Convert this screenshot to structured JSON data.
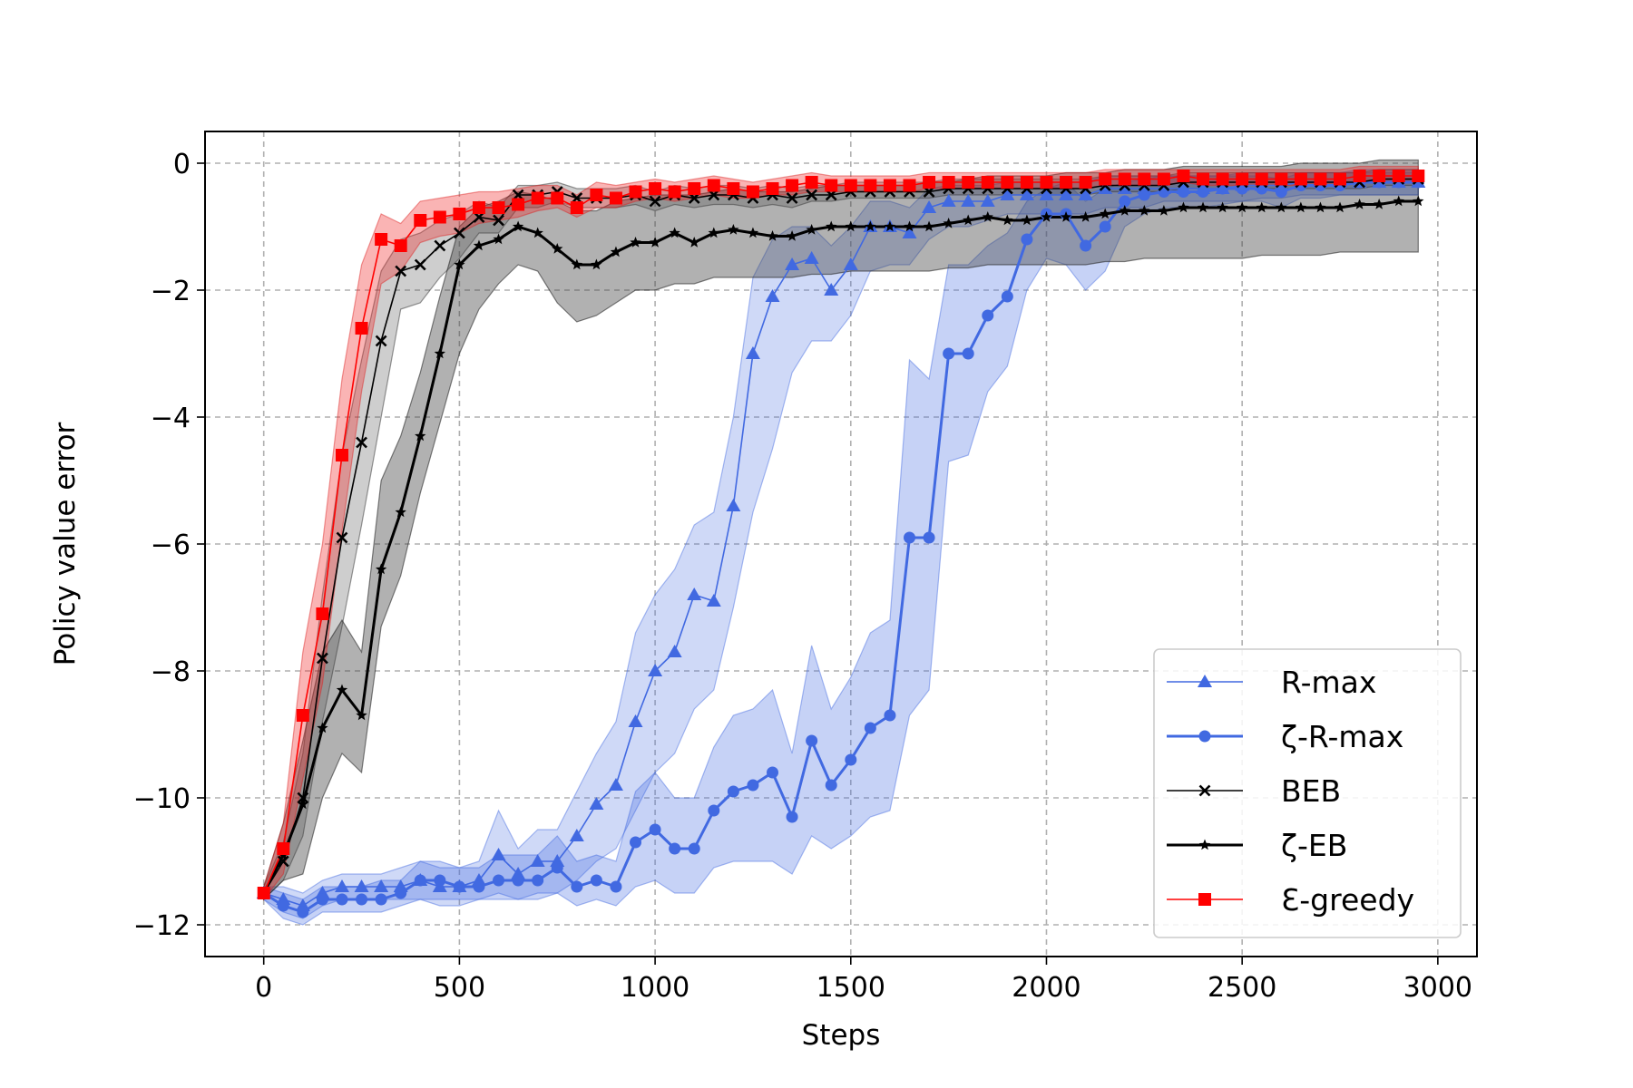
{
  "chart_data": {
    "type": "line",
    "title": "",
    "xlabel": "Steps",
    "ylabel": "Policy value error",
    "xlim": [
      -150,
      3100
    ],
    "ylim": [
      -12.5,
      0.5
    ],
    "xticks": [
      0,
      500,
      1000,
      1500,
      2000,
      2500,
      3000
    ],
    "xtick_labels": [
      "0",
      "500",
      "1000",
      "1500",
      "2000",
      "2500",
      "3000"
    ],
    "yticks": [
      0,
      -2,
      -4,
      -6,
      -8,
      -10,
      -12
    ],
    "ytick_labels": [
      "0",
      "−2",
      "−4",
      "−6",
      "−8",
      "−10",
      "−12"
    ],
    "grid": true,
    "legend_position": "bottom-right",
    "x": [
      0,
      50,
      100,
      150,
      200,
      250,
      300,
      350,
      400,
      450,
      500,
      550,
      600,
      650,
      700,
      750,
      800,
      850,
      900,
      950,
      1000,
      1050,
      1100,
      1150,
      1200,
      1250,
      1300,
      1350,
      1400,
      1450,
      1500,
      1550,
      1600,
      1650,
      1700,
      1750,
      1800,
      1850,
      1900,
      1950,
      2000,
      2050,
      2100,
      2150,
      2200,
      2250,
      2300,
      2350,
      2400,
      2450,
      2500,
      2550,
      2600,
      2650,
      2700,
      2750,
      2800,
      2850,
      2900,
      2950
    ],
    "series": [
      {
        "name": "R-max",
        "color": "#4169e1",
        "marker": "triangle",
        "linewidth": 1.6,
        "values": [
          -11.5,
          -11.6,
          -11.7,
          -11.5,
          -11.4,
          -11.4,
          -11.4,
          -11.4,
          -11.3,
          -11.4,
          -11.4,
          -11.3,
          -10.9,
          -11.2,
          -11.0,
          -11.0,
          -10.6,
          -10.1,
          -9.8,
          -8.8,
          -8.0,
          -7.7,
          -6.8,
          -6.9,
          -5.4,
          -3.0,
          -2.1,
          -1.6,
          -1.5,
          -2.0,
          -1.6,
          -1.0,
          -1.0,
          -1.1,
          -0.7,
          -0.6,
          -0.6,
          -0.6,
          -0.5,
          -0.5,
          -0.5,
          -0.5,
          -0.5,
          -0.4,
          -0.4,
          -0.4,
          -0.4,
          -0.4,
          -0.4,
          -0.4,
          -0.35,
          -0.35,
          -0.35,
          -0.3,
          -0.3,
          -0.3,
          -0.3,
          -0.3,
          -0.3,
          -0.3
        ],
        "band_lower": [
          -11.6,
          -11.8,
          -11.9,
          -11.7,
          -11.6,
          -11.6,
          -11.6,
          -11.6,
          -11.6,
          -11.7,
          -11.7,
          -11.6,
          -11.5,
          -11.6,
          -11.5,
          -11.5,
          -11.3,
          -11.0,
          -10.8,
          -10.2,
          -9.6,
          -9.3,
          -8.6,
          -8.3,
          -7.0,
          -5.5,
          -4.5,
          -3.3,
          -2.8,
          -2.8,
          -2.4,
          -1.7,
          -1.6,
          -1.6,
          -1.2,
          -1.0,
          -1.0,
          -0.9,
          -0.8,
          -0.8,
          -0.8,
          -0.8,
          -0.8,
          -0.7,
          -0.7,
          -0.7,
          -0.6,
          -0.6,
          -0.6,
          -0.6,
          -0.6,
          -0.55,
          -0.55,
          -0.5,
          -0.5,
          -0.5,
          -0.5,
          -0.5,
          -0.5,
          -0.5
        ],
        "band_upper": [
          -11.4,
          -11.4,
          -11.5,
          -11.3,
          -11.2,
          -11.2,
          -11.2,
          -11.1,
          -11.0,
          -11.1,
          -11.1,
          -11.0,
          -10.2,
          -10.8,
          -10.5,
          -10.5,
          -9.9,
          -9.3,
          -8.8,
          -7.4,
          -6.8,
          -6.4,
          -5.7,
          -5.5,
          -4.0,
          -1.8,
          -1.2,
          -1.0,
          -1.0,
          -1.3,
          -1.0,
          -0.6,
          -0.6,
          -0.7,
          -0.4,
          -0.35,
          -0.35,
          -0.35,
          -0.3,
          -0.3,
          -0.3,
          -0.3,
          -0.3,
          -0.2,
          -0.2,
          -0.2,
          -0.2,
          -0.2,
          -0.2,
          -0.2,
          -0.15,
          -0.15,
          -0.15,
          -0.15,
          -0.15,
          -0.15,
          -0.15,
          -0.15,
          -0.15,
          -0.15
        ]
      },
      {
        "name": "ζ-R-max",
        "color": "#4169e1",
        "marker": "circle",
        "linewidth": 3,
        "values": [
          -11.5,
          -11.7,
          -11.8,
          -11.6,
          -11.6,
          -11.6,
          -11.6,
          -11.5,
          -11.3,
          -11.3,
          -11.4,
          -11.4,
          -11.3,
          -11.3,
          -11.3,
          -11.1,
          -11.4,
          -11.3,
          -11.4,
          -10.7,
          -10.5,
          -10.8,
          -10.8,
          -10.2,
          -9.9,
          -9.8,
          -9.6,
          -10.3,
          -9.1,
          -9.8,
          -9.4,
          -8.9,
          -8.7,
          -5.9,
          -5.9,
          -3.0,
          -3.0,
          -2.4,
          -2.1,
          -1.2,
          -0.8,
          -0.8,
          -1.3,
          -1.0,
          -0.6,
          -0.5,
          -0.45,
          -0.45,
          -0.45,
          -0.4,
          -0.4,
          -0.4,
          -0.45,
          -0.35,
          -0.35,
          -0.35,
          -0.3,
          -0.3,
          -0.3,
          -0.3
        ],
        "band_lower": [
          -11.6,
          -11.9,
          -12.0,
          -11.8,
          -11.8,
          -11.8,
          -11.8,
          -11.7,
          -11.6,
          -11.6,
          -11.6,
          -11.6,
          -11.6,
          -11.6,
          -11.6,
          -11.5,
          -11.7,
          -11.6,
          -11.7,
          -11.4,
          -11.3,
          -11.5,
          -11.5,
          -11.1,
          -11.0,
          -11.0,
          -11.0,
          -11.2,
          -10.6,
          -10.8,
          -10.6,
          -10.3,
          -10.2,
          -8.7,
          -8.3,
          -4.7,
          -4.6,
          -3.6,
          -3.2,
          -2.0,
          -1.5,
          -1.6,
          -2.0,
          -1.7,
          -1.0,
          -0.8,
          -0.7,
          -0.7,
          -0.7,
          -0.65,
          -0.6,
          -0.6,
          -0.7,
          -0.55,
          -0.55,
          -0.5,
          -0.5,
          -0.5,
          -0.5,
          -0.5
        ],
        "band_upper": [
          -11.4,
          -11.5,
          -11.6,
          -11.4,
          -11.4,
          -11.4,
          -11.3,
          -11.3,
          -11.0,
          -11.0,
          -11.1,
          -11.1,
          -10.9,
          -10.9,
          -10.9,
          -10.6,
          -11.0,
          -10.9,
          -11.0,
          -9.9,
          -9.6,
          -10.0,
          -10.0,
          -9.2,
          -8.7,
          -8.6,
          -8.3,
          -9.3,
          -7.6,
          -8.6,
          -8.1,
          -7.4,
          -7.2,
          -3.1,
          -3.4,
          -1.6,
          -1.6,
          -1.3,
          -1.1,
          -0.6,
          -0.4,
          -0.3,
          -0.6,
          -0.4,
          -0.3,
          -0.25,
          -0.2,
          -0.2,
          -0.2,
          -0.2,
          -0.2,
          -0.2,
          -0.25,
          -0.15,
          -0.15,
          -0.15,
          -0.1,
          -0.1,
          -0.1,
          -0.1
        ]
      },
      {
        "name": "BEB",
        "color": "#000000",
        "marker": "x",
        "linewidth": 1.6,
        "values": [
          -11.5,
          -11.0,
          -10.0,
          -7.8,
          -5.9,
          -4.4,
          -2.8,
          -1.7,
          -1.6,
          -1.3,
          -1.1,
          -0.85,
          -0.9,
          -0.5,
          -0.5,
          -0.45,
          -0.55,
          -0.55,
          -0.55,
          -0.5,
          -0.6,
          -0.5,
          -0.55,
          -0.5,
          -0.5,
          -0.55,
          -0.5,
          -0.55,
          -0.5,
          -0.5,
          -0.45,
          -0.45,
          -0.45,
          -0.45,
          -0.45,
          -0.4,
          -0.4,
          -0.4,
          -0.4,
          -0.4,
          -0.4,
          -0.4,
          -0.4,
          -0.35,
          -0.35,
          -0.35,
          -0.35,
          -0.3,
          -0.3,
          -0.3,
          -0.3,
          -0.3,
          -0.3,
          -0.3,
          -0.3,
          -0.3,
          -0.3,
          -0.25,
          -0.25,
          -0.25
        ],
        "band_lower": [
          -11.6,
          -11.3,
          -10.6,
          -8.8,
          -7.3,
          -5.7,
          -4.0,
          -2.3,
          -2.2,
          -1.8,
          -1.5,
          -1.1,
          -1.1,
          -0.7,
          -0.7,
          -0.6,
          -0.7,
          -0.7,
          -0.7,
          -0.65,
          -0.75,
          -0.65,
          -0.7,
          -0.65,
          -0.65,
          -0.7,
          -0.65,
          -0.7,
          -0.6,
          -0.6,
          -0.55,
          -0.55,
          -0.55,
          -0.55,
          -0.55,
          -0.5,
          -0.5,
          -0.5,
          -0.5,
          -0.5,
          -0.5,
          -0.5,
          -0.5,
          -0.45,
          -0.45,
          -0.45,
          -0.45,
          -0.4,
          -0.4,
          -0.4,
          -0.4,
          -0.4,
          -0.4,
          -0.4,
          -0.4,
          -0.4,
          -0.4,
          -0.35,
          -0.35,
          -0.35
        ],
        "band_upper": [
          -11.4,
          -10.7,
          -9.3,
          -6.8,
          -4.6,
          -3.1,
          -1.7,
          -1.2,
          -1.1,
          -0.9,
          -0.8,
          -0.6,
          -0.7,
          -0.35,
          -0.35,
          -0.3,
          -0.4,
          -0.4,
          -0.4,
          -0.35,
          -0.45,
          -0.35,
          -0.4,
          -0.35,
          -0.35,
          -0.4,
          -0.35,
          -0.4,
          -0.35,
          -0.35,
          -0.3,
          -0.3,
          -0.3,
          -0.3,
          -0.3,
          -0.25,
          -0.25,
          -0.25,
          -0.25,
          -0.25,
          -0.25,
          -0.25,
          -0.25,
          -0.2,
          -0.2,
          -0.2,
          -0.2,
          -0.15,
          -0.15,
          -0.15,
          -0.15,
          -0.15,
          -0.15,
          -0.15,
          -0.15,
          -0.15,
          -0.15,
          -0.1,
          -0.1,
          -0.1
        ]
      },
      {
        "name": "ζ-EB",
        "color": "#000000",
        "marker": "star",
        "linewidth": 3,
        "values": [
          -11.5,
          -10.9,
          -10.1,
          -8.9,
          -8.3,
          -8.7,
          -6.4,
          -5.5,
          -4.3,
          -3.0,
          -1.6,
          -1.3,
          -1.2,
          -1.0,
          -1.1,
          -1.35,
          -1.6,
          -1.6,
          -1.4,
          -1.25,
          -1.25,
          -1.1,
          -1.25,
          -1.1,
          -1.05,
          -1.1,
          -1.15,
          -1.15,
          -1.05,
          -1.0,
          -1.0,
          -1.0,
          -1.0,
          -1.0,
          -1.0,
          -0.95,
          -0.9,
          -0.85,
          -0.9,
          -0.9,
          -0.85,
          -0.85,
          -0.85,
          -0.8,
          -0.75,
          -0.75,
          -0.75,
          -0.7,
          -0.7,
          -0.7,
          -0.7,
          -0.7,
          -0.7,
          -0.7,
          -0.7,
          -0.7,
          -0.65,
          -0.65,
          -0.6,
          -0.6
        ],
        "band_lower": [
          -11.6,
          -11.3,
          -11.2,
          -10.0,
          -9.3,
          -9.6,
          -7.3,
          -6.5,
          -5.2,
          -4.1,
          -3.0,
          -2.3,
          -1.9,
          -1.6,
          -1.7,
          -2.2,
          -2.5,
          -2.4,
          -2.2,
          -2.0,
          -2.0,
          -1.9,
          -1.9,
          -1.8,
          -1.8,
          -1.8,
          -1.8,
          -1.8,
          -1.75,
          -1.75,
          -1.7,
          -1.7,
          -1.7,
          -1.7,
          -1.7,
          -1.65,
          -1.65,
          -1.6,
          -1.6,
          -1.6,
          -1.6,
          -1.6,
          -1.6,
          -1.55,
          -1.55,
          -1.5,
          -1.5,
          -1.5,
          -1.5,
          -1.5,
          -1.5,
          -1.45,
          -1.45,
          -1.45,
          -1.45,
          -1.4,
          -1.4,
          -1.4,
          -1.4,
          -1.4
        ],
        "band_upper": [
          -11.4,
          -10.4,
          -9.1,
          -7.7,
          -7.2,
          -7.7,
          -5.0,
          -4.3,
          -3.3,
          -2.1,
          -1.0,
          -0.7,
          -0.6,
          -0.45,
          -0.5,
          -0.6,
          -0.75,
          -0.75,
          -0.6,
          -0.55,
          -0.5,
          -0.5,
          -0.5,
          -0.45,
          -0.4,
          -0.45,
          -0.45,
          -0.45,
          -0.4,
          -0.35,
          -0.35,
          -0.35,
          -0.35,
          -0.35,
          -0.3,
          -0.3,
          -0.25,
          -0.2,
          -0.2,
          -0.2,
          -0.2,
          -0.15,
          -0.15,
          -0.15,
          -0.1,
          -0.1,
          -0.1,
          -0.05,
          -0.05,
          -0.05,
          -0.05,
          -0.05,
          -0.05,
          0.0,
          0.0,
          0.0,
          0.0,
          0.05,
          0.05,
          0.05
        ]
      },
      {
        "name": "Ɛ-greedy",
        "color": "#ff0000",
        "marker": "square",
        "linewidth": 1.6,
        "values": [
          -11.5,
          -10.8,
          -8.7,
          -7.1,
          -4.6,
          -2.6,
          -1.2,
          -1.3,
          -0.9,
          -0.85,
          -0.8,
          -0.7,
          -0.7,
          -0.65,
          -0.55,
          -0.55,
          -0.7,
          -0.5,
          -0.55,
          -0.45,
          -0.4,
          -0.45,
          -0.4,
          -0.35,
          -0.4,
          -0.45,
          -0.4,
          -0.35,
          -0.3,
          -0.35,
          -0.35,
          -0.35,
          -0.35,
          -0.35,
          -0.3,
          -0.3,
          -0.3,
          -0.3,
          -0.3,
          -0.3,
          -0.3,
          -0.3,
          -0.3,
          -0.25,
          -0.25,
          -0.25,
          -0.25,
          -0.2,
          -0.25,
          -0.25,
          -0.25,
          -0.25,
          -0.25,
          -0.25,
          -0.25,
          -0.25,
          -0.2,
          -0.2,
          -0.2,
          -0.2
        ],
        "band_lower": [
          -11.6,
          -11.2,
          -9.7,
          -8.2,
          -5.8,
          -3.6,
          -1.9,
          -1.7,
          -1.25,
          -1.15,
          -1.1,
          -0.95,
          -0.9,
          -0.85,
          -0.75,
          -0.7,
          -0.85,
          -0.7,
          -0.7,
          -0.6,
          -0.55,
          -0.6,
          -0.55,
          -0.5,
          -0.55,
          -0.55,
          -0.5,
          -0.5,
          -0.45,
          -0.45,
          -0.45,
          -0.45,
          -0.45,
          -0.45,
          -0.4,
          -0.4,
          -0.4,
          -0.4,
          -0.4,
          -0.4,
          -0.4,
          -0.4,
          -0.4,
          -0.35,
          -0.35,
          -0.35,
          -0.35,
          -0.3,
          -0.35,
          -0.35,
          -0.35,
          -0.35,
          -0.35,
          -0.35,
          -0.35,
          -0.35,
          -0.3,
          -0.3,
          -0.3,
          -0.3
        ],
        "band_upper": [
          -11.4,
          -10.4,
          -7.7,
          -6.0,
          -3.4,
          -1.6,
          -0.8,
          -0.95,
          -0.6,
          -0.55,
          -0.5,
          -0.45,
          -0.45,
          -0.4,
          -0.35,
          -0.35,
          -0.5,
          -0.3,
          -0.35,
          -0.3,
          -0.25,
          -0.3,
          -0.25,
          -0.2,
          -0.25,
          -0.3,
          -0.25,
          -0.2,
          -0.15,
          -0.2,
          -0.2,
          -0.2,
          -0.2,
          -0.2,
          -0.15,
          -0.15,
          -0.15,
          -0.15,
          -0.15,
          -0.15,
          -0.15,
          -0.15,
          -0.15,
          -0.1,
          -0.1,
          -0.1,
          -0.1,
          -0.1,
          -0.1,
          -0.1,
          -0.1,
          -0.1,
          -0.1,
          -0.1,
          -0.1,
          -0.1,
          -0.05,
          -0.05,
          -0.05,
          -0.05
        ]
      }
    ]
  }
}
